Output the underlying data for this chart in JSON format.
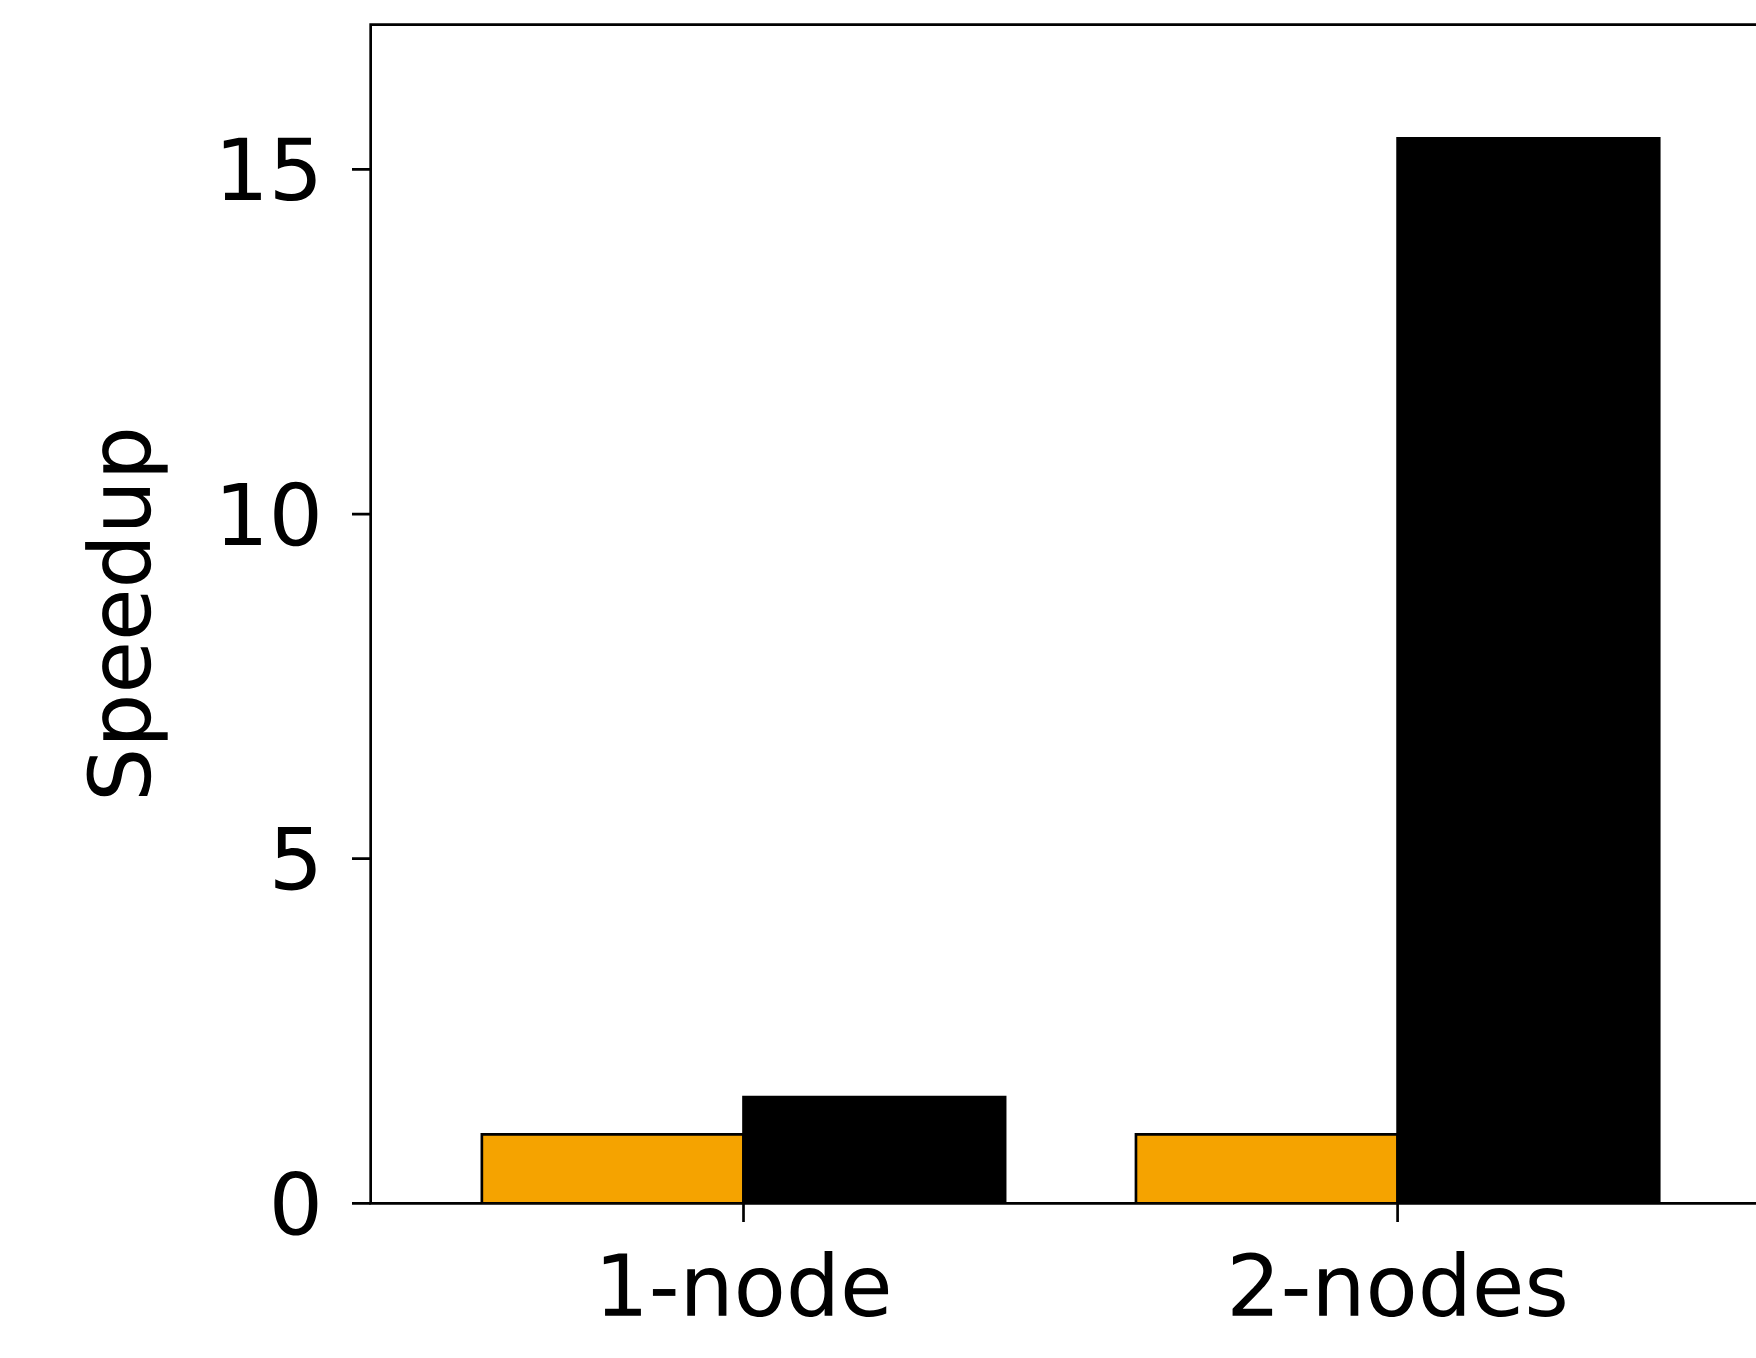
{
  "chart_data": {
    "type": "bar",
    "ylabel": "Speedup",
    "categories": [
      "1-node",
      "2-nodes"
    ],
    "series": [
      {
        "color": "#f5a300",
        "values": [
          1,
          1
        ]
      },
      {
        "color": "#000000",
        "values": [
          1.54,
          15.45
        ]
      }
    ],
    "ylim": [
      0,
      17.1
    ],
    "yticks": [
      0,
      5,
      10,
      15
    ],
    "grid": false
  }
}
